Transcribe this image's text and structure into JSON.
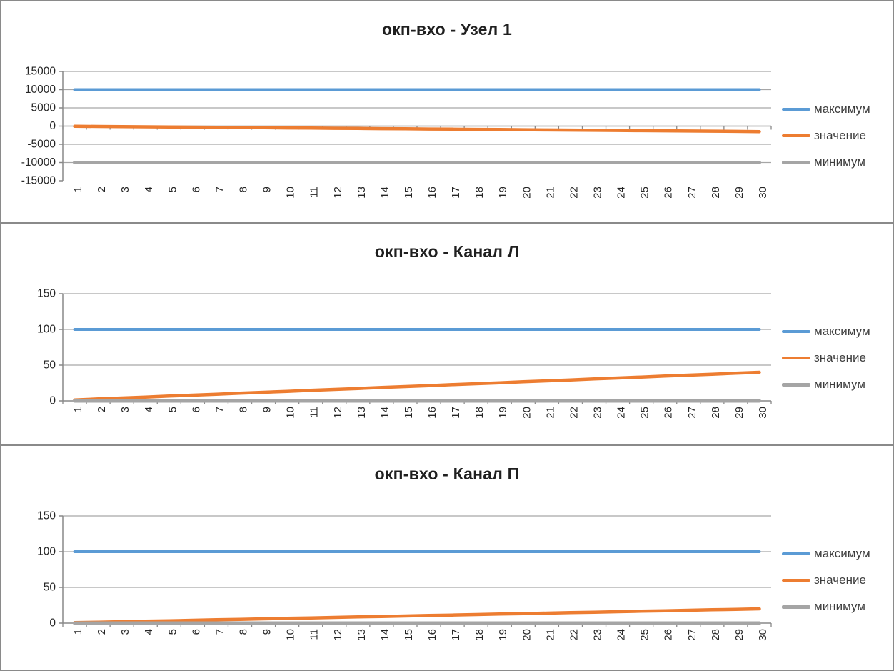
{
  "palette": {
    "max_line": "#5B9BD5",
    "value_line": "#ED7D31",
    "min_line": "#A5A5A5",
    "gridline": "#a6a6a6",
    "axis": "#898989",
    "panel_border": "#8a8a8a",
    "tick_text": "#262626",
    "title_text": "#1f1f1f"
  },
  "chart_data": [
    {
      "type": "line",
      "title": "окп-вхо - Узел 1",
      "legend_position": "right",
      "grid": true,
      "ylim": [
        -15000,
        15000
      ],
      "y_ticks": [
        15000,
        10000,
        5000,
        0,
        -5000,
        -10000,
        -15000
      ],
      "x_categories": [
        1,
        2,
        3,
        4,
        5,
        6,
        7,
        8,
        9,
        10,
        11,
        12,
        13,
        14,
        15,
        16,
        17,
        18,
        19,
        20,
        21,
        22,
        23,
        24,
        25,
        26,
        27,
        28,
        29,
        30
      ],
      "series": [
        {
          "name": "максимум",
          "color": "#5B9BD5",
          "constant": 10000
        },
        {
          "name": "значение",
          "color": "#ED7D31",
          "values": [
            -50,
            -100,
            -150,
            -200,
            -250,
            -300,
            -350,
            -400,
            -450,
            -500,
            -550,
            -600,
            -650,
            -700,
            -750,
            -800,
            -850,
            -900,
            -950,
            -1000,
            -1050,
            -1100,
            -1150,
            -1200,
            -1250,
            -1300,
            -1350,
            -1400,
            -1450,
            -1500
          ]
        },
        {
          "name": "минимум",
          "color": "#A5A5A5",
          "constant": -10000
        }
      ]
    },
    {
      "type": "line",
      "title": "окп-вхо - Канал Л",
      "legend_position": "right",
      "grid": true,
      "ylim": [
        0,
        150
      ],
      "y_ticks": [
        150,
        100,
        50,
        0
      ],
      "x_categories": [
        1,
        2,
        3,
        4,
        5,
        6,
        7,
        8,
        9,
        10,
        11,
        12,
        13,
        14,
        15,
        16,
        17,
        18,
        19,
        20,
        21,
        22,
        23,
        24,
        25,
        26,
        27,
        28,
        29,
        30
      ],
      "series": [
        {
          "name": "максимум",
          "color": "#5B9BD5",
          "constant": 100
        },
        {
          "name": "значение",
          "color": "#ED7D31",
          "values": [
            1.3,
            2.7,
            4,
            5.3,
            6.7,
            8,
            9.3,
            10.7,
            12,
            13.3,
            14.7,
            16,
            17.3,
            18.7,
            20,
            21.3,
            22.7,
            24,
            25.3,
            26.7,
            28,
            29.3,
            30.7,
            32,
            33.3,
            34.7,
            36,
            37.3,
            38.7,
            40
          ]
        },
        {
          "name": "минимум",
          "color": "#A5A5A5",
          "constant": 0
        }
      ]
    },
    {
      "type": "line",
      "title": "окп-вхо - Канал П",
      "legend_position": "right",
      "grid": true,
      "ylim": [
        0,
        150
      ],
      "y_ticks": [
        150,
        100,
        50,
        0
      ],
      "x_categories": [
        1,
        2,
        3,
        4,
        5,
        6,
        7,
        8,
        9,
        10,
        11,
        12,
        13,
        14,
        15,
        16,
        17,
        18,
        19,
        20,
        21,
        22,
        23,
        24,
        25,
        26,
        27,
        28,
        29,
        30
      ],
      "series": [
        {
          "name": "максимум",
          "color": "#5B9BD5",
          "constant": 100
        },
        {
          "name": "значение",
          "color": "#ED7D31",
          "values": [
            0.7,
            1.3,
            2,
            2.7,
            3.3,
            4,
            4.7,
            5.3,
            6,
            6.7,
            7.3,
            8,
            8.7,
            9.3,
            10,
            10.7,
            11.3,
            12,
            12.7,
            13.3,
            14,
            14.7,
            15.3,
            16,
            16.7,
            17.3,
            18,
            18.7,
            19.3,
            20
          ]
        },
        {
          "name": "минимум",
          "color": "#A5A5A5",
          "constant": 0
        }
      ]
    }
  ]
}
